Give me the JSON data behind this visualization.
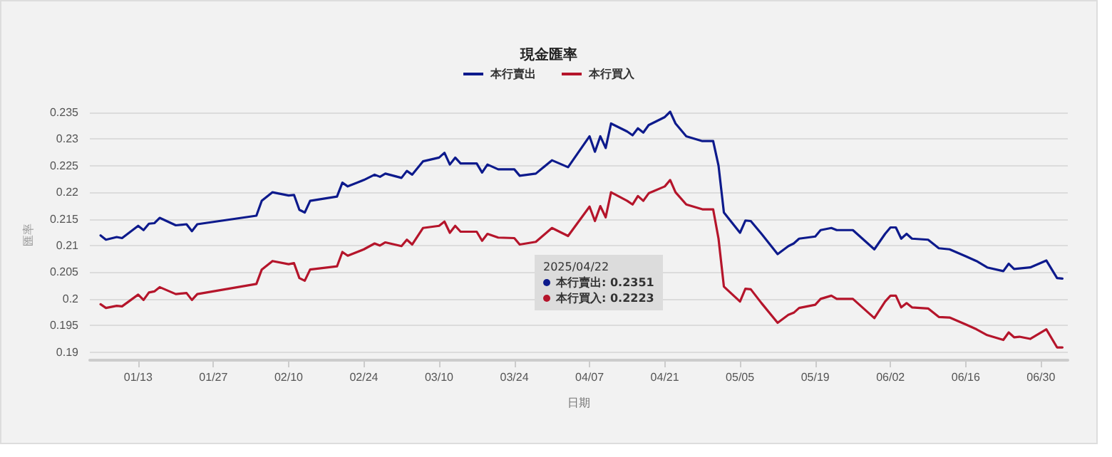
{
  "chart_data": {
    "type": "line",
    "title": "現金匯率",
    "xlabel": "日期",
    "ylabel": "匯率",
    "legend": "top",
    "grid": "y",
    "marker": "none",
    "line_style": "solid",
    "xlim": [
      "2025-01-04",
      "2025-07-05"
    ],
    "xticks": [
      {
        "value": "2025-01-13",
        "label": "01/13"
      },
      {
        "value": "2025-01-27",
        "label": "01/27"
      },
      {
        "value": "2025-02-10",
        "label": "02/10"
      },
      {
        "value": "2025-02-24",
        "label": "02/24"
      },
      {
        "value": "2025-03-10",
        "label": "03/10"
      },
      {
        "value": "2025-03-24",
        "label": "03/24"
      },
      {
        "value": "2025-04-07",
        "label": "04/07"
      },
      {
        "value": "2025-04-21",
        "label": "04/21"
      },
      {
        "value": "2025-05-05",
        "label": "05/05"
      },
      {
        "value": "2025-05-19",
        "label": "05/19"
      },
      {
        "value": "2025-06-02",
        "label": "06/02"
      },
      {
        "value": "2025-06-16",
        "label": "06/16"
      },
      {
        "value": "2025-06-30",
        "label": "06/30"
      }
    ],
    "ylim": [
      0.1885,
      0.2355
    ],
    "yticks": [
      0.19,
      0.195,
      0.2,
      0.205,
      0.21,
      0.215,
      0.22,
      0.225,
      0.23,
      0.235
    ],
    "x": [
      "2025-01-06",
      "2025-01-07",
      "2025-01-09",
      "2025-01-10",
      "2025-01-13",
      "2025-01-14",
      "2025-01-15",
      "2025-01-16",
      "2025-01-17",
      "2025-01-20",
      "2025-01-22",
      "2025-01-23",
      "2025-01-24",
      "2025-02-04",
      "2025-02-05",
      "2025-02-07",
      "2025-02-10",
      "2025-02-11",
      "2025-02-12",
      "2025-02-13",
      "2025-02-14",
      "2025-02-19",
      "2025-02-20",
      "2025-02-21",
      "2025-02-24",
      "2025-02-26",
      "2025-02-27",
      "2025-02-28",
      "2025-03-03",
      "2025-03-04",
      "2025-03-05",
      "2025-03-07",
      "2025-03-10",
      "2025-03-11",
      "2025-03-12",
      "2025-03-13",
      "2025-03-14",
      "2025-03-17",
      "2025-03-18",
      "2025-03-19",
      "2025-03-21",
      "2025-03-24",
      "2025-03-25",
      "2025-03-28",
      "2025-03-31",
      "2025-04-03",
      "2025-04-07",
      "2025-04-08",
      "2025-04-09",
      "2025-04-10",
      "2025-04-11",
      "2025-04-14",
      "2025-04-15",
      "2025-04-16",
      "2025-04-17",
      "2025-04-18",
      "2025-04-21",
      "2025-04-22",
      "2025-04-23",
      "2025-04-25",
      "2025-04-28",
      "2025-04-30",
      "2025-05-01",
      "2025-05-02",
      "2025-05-05",
      "2025-05-06",
      "2025-05-07",
      "2025-05-09",
      "2025-05-12",
      "2025-05-14",
      "2025-05-15",
      "2025-05-16",
      "2025-05-19",
      "2025-05-20",
      "2025-05-22",
      "2025-05-23",
      "2025-05-26",
      "2025-05-30",
      "2025-06-01",
      "2025-06-02",
      "2025-06-03",
      "2025-06-04",
      "2025-06-05",
      "2025-06-06",
      "2025-06-09",
      "2025-06-11",
      "2025-06-13",
      "2025-06-16",
      "2025-06-18",
      "2025-06-20",
      "2025-06-23",
      "2025-06-24",
      "2025-06-25",
      "2025-06-26",
      "2025-06-28",
      "2025-07-01",
      "2025-07-03",
      "2025-07-04"
    ],
    "series": [
      {
        "name": "本行賣出",
        "color": "#0d1a8c",
        "values": [
          0.2119,
          0.2111,
          0.2116,
          0.2114,
          0.2137,
          0.2129,
          0.2141,
          0.2142,
          0.2152,
          0.2138,
          0.214,
          0.2127,
          0.214,
          0.2156,
          0.2184,
          0.22,
          0.2194,
          0.2195,
          0.2167,
          0.2162,
          0.2184,
          0.2192,
          0.2218,
          0.2211,
          0.2223,
          0.2233,
          0.2229,
          0.2235,
          0.2227,
          0.224,
          0.2233,
          0.2258,
          0.2265,
          0.2274,
          0.2252,
          0.2265,
          0.2254,
          0.2254,
          0.2237,
          0.2252,
          0.2243,
          0.2243,
          0.2231,
          0.2235,
          0.226,
          0.2247,
          0.2305,
          0.2276,
          0.2305,
          0.2283,
          0.2329,
          0.2314,
          0.2307,
          0.232,
          0.2312,
          0.2326,
          0.2341,
          0.2351,
          0.2329,
          0.2305,
          0.2296,
          0.2296,
          0.225,
          0.2162,
          0.2124,
          0.2147,
          0.2146,
          0.2122,
          0.2084,
          0.2099,
          0.2104,
          0.2113,
          0.2117,
          0.2129,
          0.2133,
          0.2129,
          0.2129,
          0.2093,
          0.2122,
          0.2134,
          0.2134,
          0.2113,
          0.2122,
          0.2113,
          0.2111,
          0.2095,
          0.2093,
          0.208,
          0.2071,
          0.2059,
          0.2052,
          0.2066,
          0.2056,
          0.2057,
          0.2059,
          0.2072,
          0.2039,
          0.2038
        ]
      },
      {
        "name": "本行買入",
        "color": "#b5152b",
        "values": [
          0.199,
          0.1983,
          0.1987,
          0.1986,
          0.2008,
          0.1998,
          0.2012,
          0.2014,
          0.2022,
          0.2009,
          0.2011,
          0.1998,
          0.2009,
          0.2028,
          0.2055,
          0.2071,
          0.2065,
          0.2067,
          0.2039,
          0.2034,
          0.2055,
          0.2061,
          0.2088,
          0.2081,
          0.2093,
          0.2104,
          0.21,
          0.2106,
          0.2099,
          0.2111,
          0.2102,
          0.2133,
          0.2137,
          0.2145,
          0.2124,
          0.2137,
          0.2126,
          0.2126,
          0.2109,
          0.2122,
          0.2115,
          0.2114,
          0.2102,
          0.2107,
          0.2133,
          0.2118,
          0.2173,
          0.2146,
          0.2174,
          0.2153,
          0.22,
          0.2184,
          0.2177,
          0.2193,
          0.2184,
          0.2198,
          0.2211,
          0.2223,
          0.22,
          0.2177,
          0.2168,
          0.2168,
          0.2113,
          0.2023,
          0.1995,
          0.2019,
          0.2018,
          0.1992,
          0.1955,
          0.197,
          0.1974,
          0.1983,
          0.1989,
          0.2,
          0.2006,
          0.2,
          0.2,
          0.1964,
          0.1995,
          0.2006,
          0.2006,
          0.1984,
          0.1992,
          0.1984,
          0.1982,
          0.1966,
          0.1965,
          0.1952,
          0.1943,
          0.1932,
          0.1923,
          0.1937,
          0.1928,
          0.1929,
          0.1925,
          0.1943,
          0.1909,
          0.1909
        ]
      }
    ],
    "annotations": [
      "2025/04/22",
      "本行賣出: 0.2351",
      "本行買入: 0.2223"
    ]
  }
}
